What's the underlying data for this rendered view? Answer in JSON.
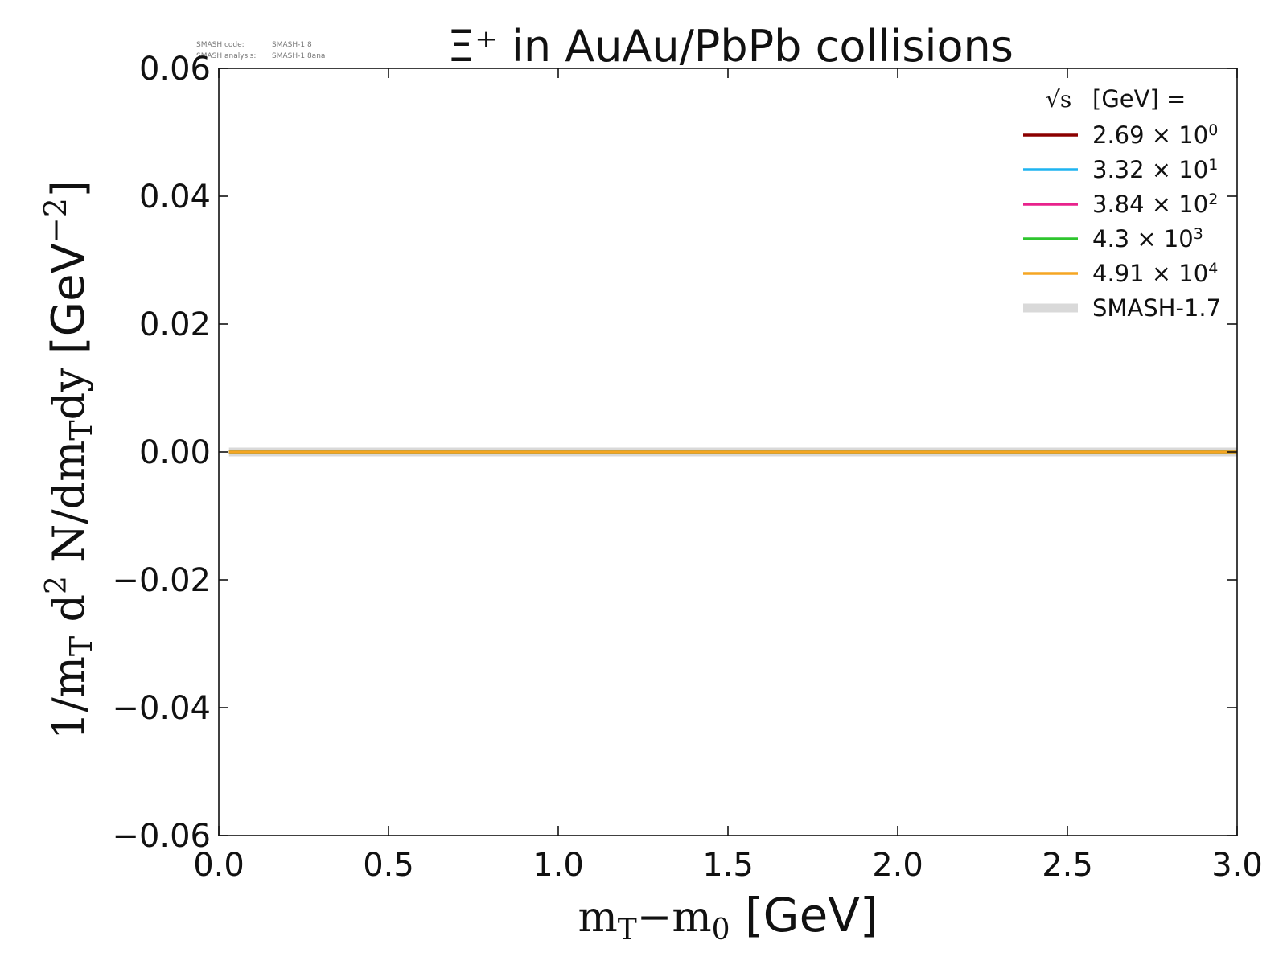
{
  "meta": {
    "code_label": "SMASH code:",
    "code_value": "SMASH-1.8",
    "analysis_label": "SMASH analysis:",
    "analysis_value": "SMASH-1.8ana"
  },
  "legend": {
    "header_sqrt": "√s",
    "header_unit": "[GeV] ="
  },
  "chart_data": {
    "type": "line",
    "title": "Ξ⁺ in AuAu/PbPb collisions",
    "xlabel": "m_T−m_0 [GeV]",
    "ylabel": "1/m_T d² N/dm_T dy [GeV⁻²]",
    "xlim": [
      0.0,
      3.0
    ],
    "ylim": [
      -0.06,
      0.06
    ],
    "x_ticks": [
      "0.0",
      "0.5",
      "1.0",
      "1.5",
      "2.0",
      "2.5",
      "3.0"
    ],
    "y_ticks": [
      "−0.06",
      "−0.04",
      "−0.02",
      "0.00",
      "0.02",
      "0.04",
      "0.06"
    ],
    "grid": false,
    "legend_position": "top-right",
    "series": [
      {
        "name": "2.69 × 10⁰",
        "mantissa": "2.69",
        "exponent": "0",
        "color": "#8b0000",
        "x": [
          0.03,
          3.0
        ],
        "y": [
          0.0,
          0.0
        ]
      },
      {
        "name": "3.32 × 10¹",
        "mantissa": "3.32",
        "exponent": "1",
        "color": "#1eb4f0",
        "x": [
          0.03,
          3.0
        ],
        "y": [
          0.0,
          0.0
        ]
      },
      {
        "name": "3.84 × 10²",
        "mantissa": "3.84",
        "exponent": "2",
        "color": "#e8228c",
        "x": [
          0.03,
          3.0
        ],
        "y": [
          0.0,
          0.0
        ]
      },
      {
        "name": "4.3 × 10³",
        "mantissa": "4.3",
        "exponent": "3",
        "color": "#2ec52e",
        "x": [
          0.03,
          3.0
        ],
        "y": [
          0.0,
          0.0
        ]
      },
      {
        "name": "4.91 × 10⁴",
        "mantissa": "4.91",
        "exponent": "4",
        "color": "#f5a623",
        "x": [
          0.03,
          3.0
        ],
        "y": [
          0.0,
          0.0
        ]
      },
      {
        "name": "SMASH-1.7",
        "color": "#d9d9d9",
        "reference": true,
        "x": [
          0.03,
          3.0
        ],
        "y": [
          0.0,
          0.0
        ]
      }
    ]
  }
}
